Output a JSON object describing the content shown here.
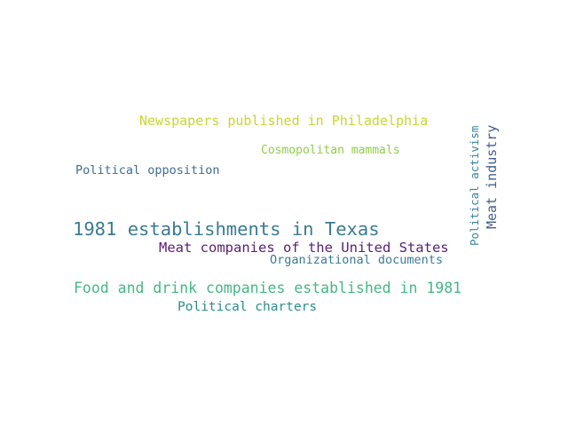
{
  "words": [
    {
      "text": "Newspapers published in Philadelphia",
      "color": "#c9d72e"
    },
    {
      "text": "Cosmopolitan mammals",
      "color": "#8fce47"
    },
    {
      "text": "Political opposition",
      "color": "#3f6e90"
    },
    {
      "text": "1981 establishments in Texas",
      "color": "#3b7a93"
    },
    {
      "text": "Meat companies of the United States",
      "color": "#5b1f74"
    },
    {
      "text": "Organizational documents",
      "color": "#3a7b98"
    },
    {
      "text": "Food and drink companies established in 1981",
      "color": "#43b984"
    },
    {
      "text": "Political charters",
      "color": "#2a8e8c"
    },
    {
      "text": "Political activism",
      "color": "#35829b"
    },
    {
      "text": "Meat industry",
      "color": "#425f8f"
    }
  ]
}
